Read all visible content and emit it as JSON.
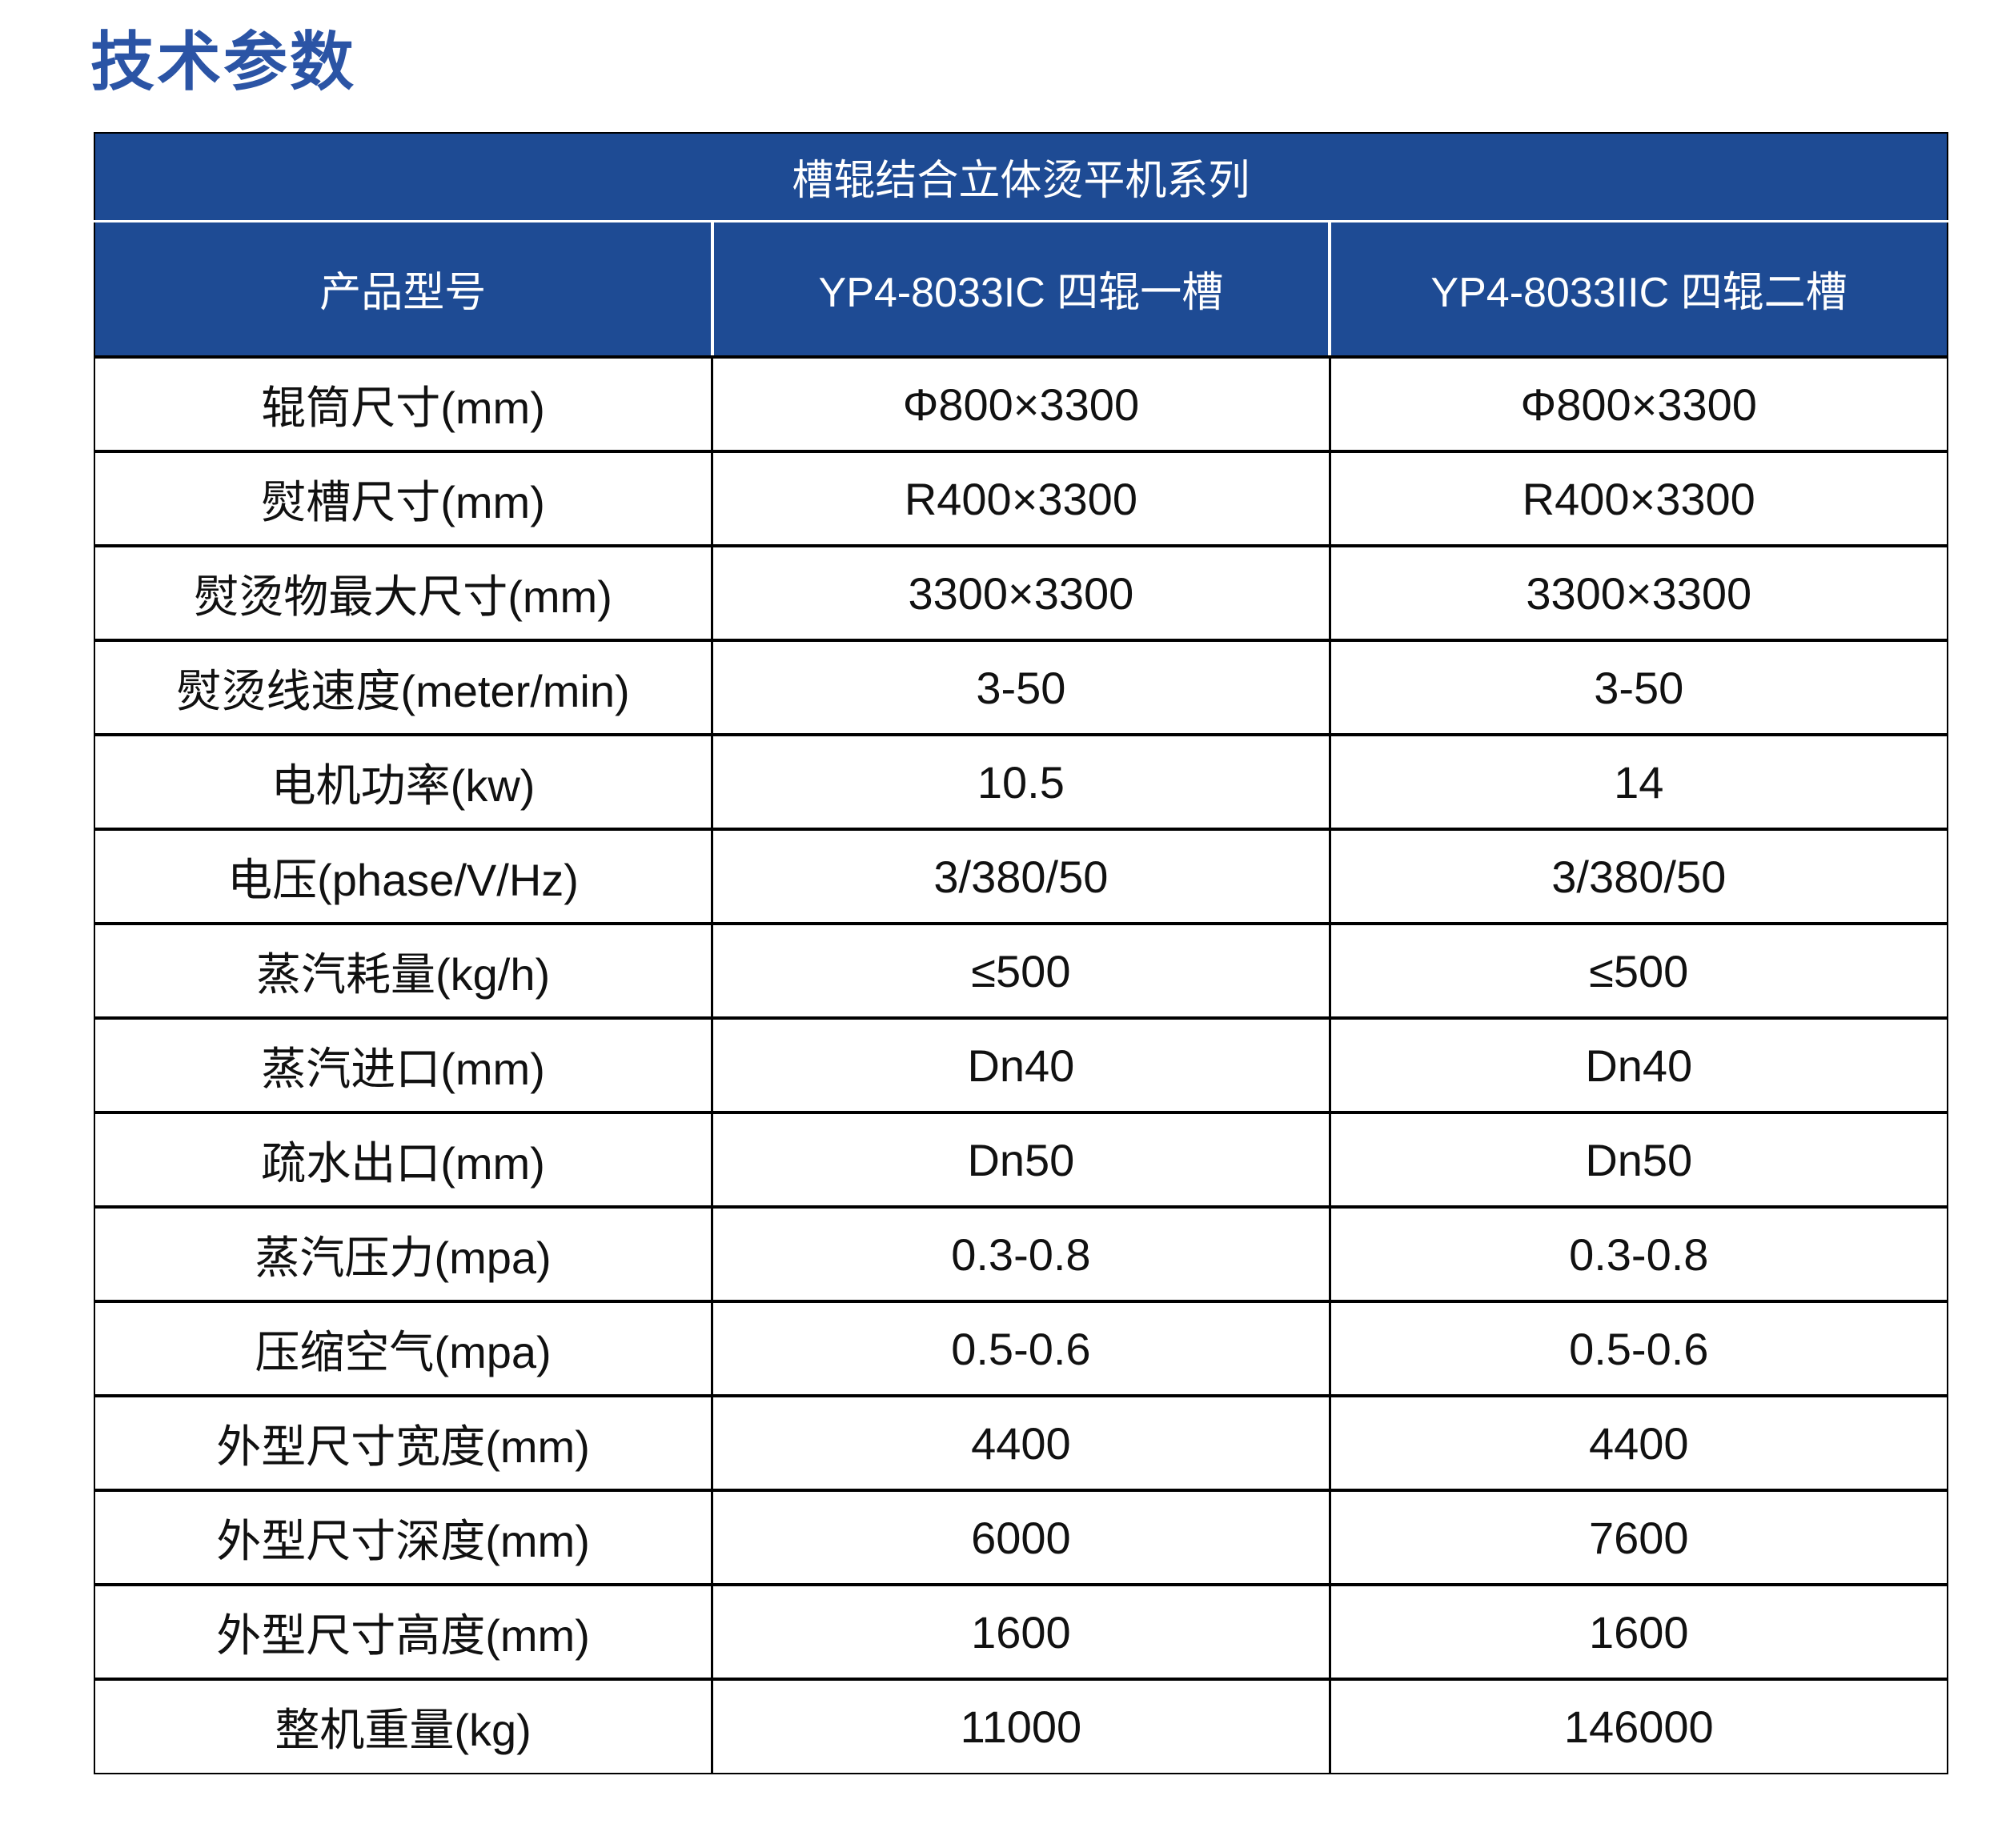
{
  "page_title": "技术参数",
  "colors": {
    "accent_blue": "#2b54a5",
    "header_bg": "#1e4b94",
    "grid_black": "#000000",
    "sep_white": "#ffffff"
  },
  "table": {
    "series_header": "槽辊结合立体烫平机系列",
    "columns": [
      "产品型号",
      "YP4-8033IC 四辊一槽",
      "YP4-8033IIC 四辊二槽"
    ],
    "rows": [
      {
        "label": "辊筒尺寸(mm)",
        "c1": "Φ800×3300",
        "c2": "Φ800×3300"
      },
      {
        "label": "熨槽尺寸(mm)",
        "c1": "R400×3300",
        "c2": "R400×3300"
      },
      {
        "label": "熨烫物最大尺寸(mm)",
        "c1": "3300×3300",
        "c2": "3300×3300"
      },
      {
        "label": "熨烫线速度(meter/min)",
        "c1": "3-50",
        "c2": "3-50"
      },
      {
        "label": "电机功率(kw)",
        "c1": "10.5",
        "c2": "14"
      },
      {
        "label": "电压(phase/V/Hz)",
        "c1": "3/380/50",
        "c2": "3/380/50"
      },
      {
        "label": "蒸汽耗量(kg/h)",
        "c1": "≤500",
        "c2": "≤500"
      },
      {
        "label": "蒸汽进口(mm)",
        "c1": "Dn40",
        "c2": "Dn40"
      },
      {
        "label": "疏水出口(mm)",
        "c1": "Dn50",
        "c2": "Dn50"
      },
      {
        "label": "蒸汽压力(mpa)",
        "c1": "0.3-0.8",
        "c2": "0.3-0.8"
      },
      {
        "label": "压缩空气(mpa)",
        "c1": "0.5-0.6",
        "c2": "0.5-0.6"
      },
      {
        "label": "外型尺寸宽度(mm)",
        "c1": "4400",
        "c2": "4400"
      },
      {
        "label": "外型尺寸深度(mm)",
        "c1": "6000",
        "c2": "7600"
      },
      {
        "label": "外型尺寸高度(mm)",
        "c1": "1600",
        "c2": "1600"
      },
      {
        "label": "整机重量(kg)",
        "c1": "11000",
        "c2": "146000"
      }
    ]
  }
}
